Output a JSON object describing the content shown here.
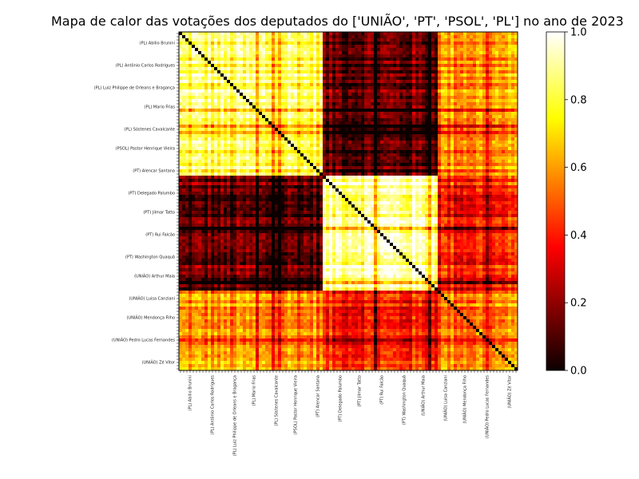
{
  "chart_data": {
    "type": "heatmap",
    "title": "Mapa de calor das votações dos deputados do ['UNIÃO', 'PT', 'PSOL', 'PL'] no ano de 2023",
    "xlabel": "",
    "ylabel": "",
    "colormap": "hot",
    "colorbar": {
      "range": [
        0.0,
        1.0
      ],
      "ticks": [
        0.0,
        0.2,
        0.4,
        0.6,
        0.8,
        1.0
      ],
      "tick_labels": [
        "0.0",
        "0.2",
        "0.4",
        "0.6",
        "0.8",
        "1.0"
      ]
    },
    "diagonal_value": 0.0,
    "party_blocks": [
      {
        "party": "PL",
        "approx_share": 0.42
      },
      {
        "party": "PT/PSOL",
        "approx_share": 0.34
      },
      {
        "party": "UNIÃO",
        "approx_share": 0.24
      }
    ],
    "block_similarity": {
      "within_PL": 0.82,
      "within_PT_PSOL": 0.92,
      "within_UNIAO": 0.55,
      "PL_vs_PT_PSOL": 0.12,
      "PL_vs_UNIAO": 0.58,
      "PT_PSOL_vs_UNIAO": 0.4
    },
    "visible_row_labels": [
      "(PL) Abilio Brunini",
      "(PL) Antônio Carlos Rodrigues",
      "(PL) Luiz Philippe de Orleans e Bragança",
      "(PL) Mario Frias",
      "(PL) Sóstenes Cavalcante",
      "(PSOL) Pastor Henrique Vieira",
      "(PT) Alencar Santana",
      "(PT) Delegado Palumbo",
      "(PT) Jilmar Tatto",
      "(PT) Rui Falcão",
      "(PT) Washington Quaquá",
      "(UNIÃO) Arthur Maia",
      "(UNIÃO) Luisa Canziani",
      "(UNIÃO) Mendonça Filho",
      "(UNIÃO) Pedro Lucas Fernandes",
      "(UNIÃO) Zé Vitor"
    ]
  }
}
